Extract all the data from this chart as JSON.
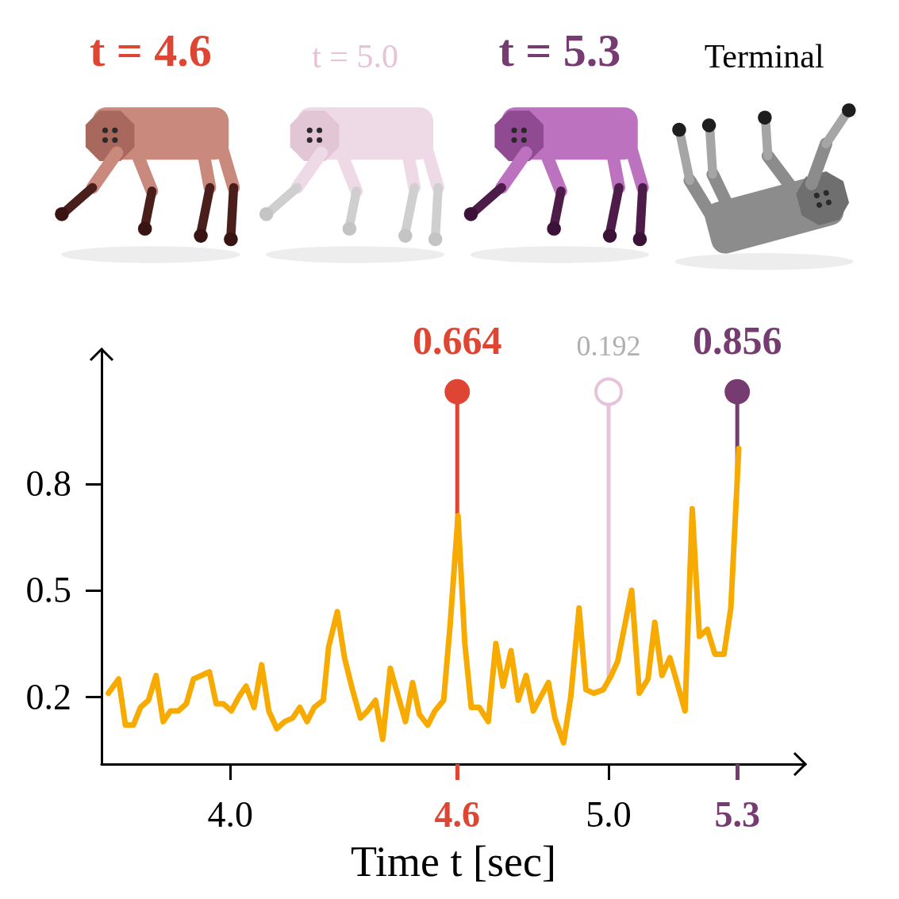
{
  "chart_data": {
    "type": "line",
    "xlabel": "Time t [sec]",
    "xlim": [
      3.66,
      5.52
    ],
    "ylim": [
      0.01,
      1.18
    ],
    "xticks": [
      {
        "value": 4,
        "label": "4.0"
      },
      4.6,
      {
        "value": 5,
        "label": "5.0"
      },
      {
        "value": 5.34,
        "label": "5.3"
      }
    ],
    "yticks": [
      0.2,
      0.5,
      0.8
    ],
    "line_style": "solid",
    "series": [
      {
        "color": "#f7aa00",
        "marker": "none",
        "x": [
          3.678,
          3.705,
          3.723,
          3.744,
          3.763,
          3.784,
          3.804,
          3.823,
          3.842,
          3.863,
          3.884,
          3.903,
          3.924,
          3.945,
          3.963,
          3.982,
          4.003,
          4.023,
          4.042,
          4.063,
          4.083,
          4.102,
          4.123,
          4.144,
          4.165,
          4.184,
          4.203,
          4.222,
          4.246,
          4.26,
          4.283,
          4.302,
          4.323,
          4.344,
          4.363,
          4.384,
          4.403,
          4.423,
          4.463,
          4.482,
          4.5,
          4.522,
          4.541,
          4.564,
          4.581,
          4.602,
          4.62,
          4.637,
          4.658,
          4.682,
          4.702,
          4.721,
          4.742,
          4.761,
          4.782,
          4.801,
          4.841,
          4.858,
          4.881,
          4.9,
          4.922,
          4.94,
          4.961,
          4.986,
          5.007,
          5.024,
          5.061,
          5.081,
          5.104,
          5.122,
          5.141,
          5.162,
          5.202,
          5.221,
          5.24,
          5.261,
          5.281,
          5.305,
          5.323,
          5.344
        ],
        "values": [
          0.21,
          0.25,
          0.12,
          0.12,
          0.17,
          0.19,
          0.26,
          0.13,
          0.16,
          0.16,
          0.18,
          0.25,
          0.26,
          0.27,
          0.18,
          0.18,
          0.16,
          0.2,
          0.23,
          0.17,
          0.29,
          0.16,
          0.11,
          0.13,
          0.14,
          0.17,
          0.13,
          0.17,
          0.19,
          0.34,
          0.44,
          0.31,
          0.22,
          0.14,
          0.16,
          0.19,
          0.08,
          0.28,
          0.13,
          0.24,
          0.15,
          0.12,
          0.16,
          0.19,
          0.4,
          0.71,
          0.35,
          0.17,
          0.17,
          0.13,
          0.35,
          0.23,
          0.33,
          0.19,
          0.26,
          0.16,
          0.24,
          0.14,
          0.07,
          0.2,
          0.45,
          0.22,
          0.21,
          0.22,
          0.26,
          0.3,
          0.5,
          0.21,
          0.25,
          0.41,
          0.26,
          0.31,
          0.16,
          0.73,
          0.37,
          0.39,
          0.32,
          0.32,
          0.45,
          0.9
        ]
      },
      {
        "type": "lollipop",
        "marker": "circle",
        "x": [
          4.6,
          5.0,
          5.34
        ],
        "values": [
          1.06,
          1.06,
          1.06
        ],
        "colors": [
          "#de4533",
          "#e6c3d8",
          "#763b70"
        ]
      }
    ],
    "annotations": [
      "t = 4.6",
      "t = 5.0",
      "t = 5.3",
      "Terminal",
      {
        "text": "0.664",
        "x": 4.6,
        "y": 1.06
      },
      {
        "text": "0.192",
        "x": 5.0,
        "y": 1.06
      },
      {
        "text": "0.856",
        "x": 5.34,
        "y": 1.06
      }
    ]
  }
}
